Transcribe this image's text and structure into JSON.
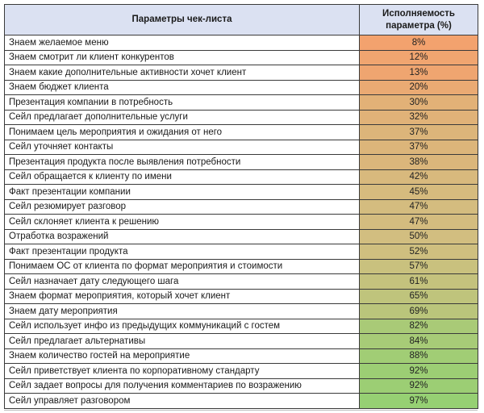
{
  "chart_data": {
    "type": "table",
    "title": "",
    "columns": [
      "Параметры чек-листа",
      "Исполняемость параметра (%)"
    ],
    "categories": [
      "Знаем желаемое меню",
      "Знаем смотрит ли клиент конкурентов",
      "Знаем какие дополнительные активности хочет клиент",
      "Знаем бюджет клиента",
      "Презентация компании в потребность",
      "Сейл предлагает дополнительные услуги",
      "Понимаем цель мероприятия и ожидания от него",
      "Сейл уточняет контакты",
      "Презентация продукта после выявления потребности",
      "Сейл обращается к клиенту по имени",
      "Факт презентации компании",
      "Сейл резюмирует разговор",
      "Сейл склоняет клиента к решению",
      "Отработка возражений",
      "Факт презентации продукта",
      "Понимаем ОС от клиента по формат мероприятия и стоимости",
      "Сейл назначает дату следующего шага",
      "Знаем формат мероприятия, который хочет клиент",
      "Знаем дату мероприятия",
      "Сейл использует инфо из предыдущих коммуникаций с гостем",
      "Сейл предлагает альтернативы",
      "Знаем количество гостей на мероприятие",
      "Сейл приветствует клиента по корпоративному стандарту",
      "Сейл задает вопросы для получения комментариев по возражению",
      "Сейл управляет разговором"
    ],
    "values": [
      8,
      12,
      13,
      20,
      30,
      32,
      37,
      37,
      38,
      42,
      45,
      47,
      47,
      50,
      52,
      57,
      61,
      65,
      69,
      82,
      84,
      88,
      92,
      92,
      97
    ],
    "value_unit": "%",
    "conditional_formatting": {
      "type": "3-color-scale",
      "low_color": "#F3A26E",
      "mid_color": "#D2BE80",
      "high_color": "#96D073"
    }
  },
  "table": {
    "header": {
      "param": "Параметры чек-листа",
      "value": "Исполняемость параметра (%)",
      "bg": "#DBE1F2"
    },
    "rows": [
      {
        "label": "Знаем желаемое меню",
        "value": "8%",
        "color": "#F3A26E"
      },
      {
        "label": "Знаем смотрит ли клиент конкурентов",
        "value": "12%",
        "color": "#F0A570"
      },
      {
        "label": "Знаем какие дополнительные активности хочет клиент",
        "value": "13%",
        "color": "#EFA570"
      },
      {
        "label": "Знаем бюджет клиента",
        "value": "20%",
        "color": "#EAAA73"
      },
      {
        "label": "Презентация компании в потребность",
        "value": "30%",
        "color": "#E2B177"
      },
      {
        "label": "Сейл предлагает дополнительные услуги",
        "value": "32%",
        "color": "#E0B278"
      },
      {
        "label": "Понимаем цель мероприятия и ожидания от него",
        "value": "37%",
        "color": "#DCB57A"
      },
      {
        "label": "Сейл уточняет контакты",
        "value": "37%",
        "color": "#DCB57A"
      },
      {
        "label": "Презентация продукта после выявления потребности",
        "value": "38%",
        "color": "#DBB67B"
      },
      {
        "label": "Сейл обращается к клиенту по имени",
        "value": "42%",
        "color": "#D8B97D"
      },
      {
        "label": "Факт презентации компании",
        "value": "45%",
        "color": "#D6BB7E"
      },
      {
        "label": "Сейл резюмирует разговор",
        "value": "47%",
        "color": "#D4BC7F"
      },
      {
        "label": "Сейл склоняет клиента к решению",
        "value": "47%",
        "color": "#D4BC7F"
      },
      {
        "label": "Отработка возражений",
        "value": "50%",
        "color": "#D2BE80"
      },
      {
        "label": "Факт презентации продукта",
        "value": "52%",
        "color": "#CFBF7F"
      },
      {
        "label": "Понимаем ОС от клиента по формат мероприятия и стоимости",
        "value": "57%",
        "color": "#C9C17E"
      },
      {
        "label": "Сейл назначает дату следующего шага",
        "value": "61%",
        "color": "#C4C27D"
      },
      {
        "label": "Знаем формат мероприятия, который хочет клиент",
        "value": "65%",
        "color": "#BFC47C"
      },
      {
        "label": "Знаем дату мероприятия",
        "value": "69%",
        "color": "#BAC57B"
      },
      {
        "label": "Сейл использует инфо из предыдущих коммуникаций с гостем",
        "value": "82%",
        "color": "#A9CA77"
      },
      {
        "label": "Сейл предлагает альтернативы",
        "value": "84%",
        "color": "#A7CB77"
      },
      {
        "label": "Знаем количество гостей на мероприятие",
        "value": "88%",
        "color": "#A1CD75"
      },
      {
        "label": "Сейл приветствует клиента по корпоративному стандарту",
        "value": "92%",
        "color": "#9CCE74"
      },
      {
        "label": "Сейл задает вопросы для получения комментариев по возражению",
        "value": "92%",
        "color": "#9CCE74"
      },
      {
        "label": "Сейл управляет разговором",
        "value": "97%",
        "color": "#96D073"
      }
    ]
  }
}
